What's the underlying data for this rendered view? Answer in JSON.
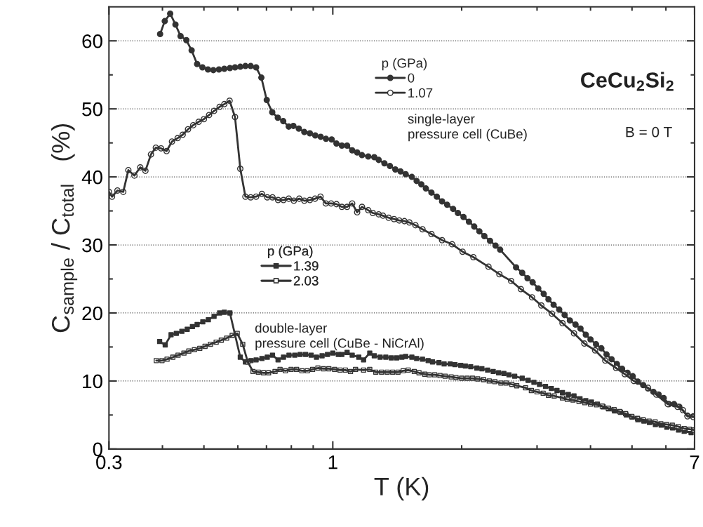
{
  "chart_data": {
    "type": "line",
    "xlabel": "T (K)",
    "ylabel": "C$_{sample}$ / C$_{total}$   (%)",
    "legend_title": "p (GPa)",
    "log": "x",
    "xlim": [
      0.3,
      7
    ],
    "xticks": [
      0.3,
      1,
      7
    ],
    "ylim": [
      0,
      65
    ],
    "yticks": [
      0,
      10,
      20,
      30,
      40,
      50,
      60
    ],
    "grid": "y",
    "legend": "top",
    "line_style": "solid",
    "annotations": [
      "CeCu$_{2}$Si$_{2}$",
      "B = 0 T",
      "single-layer\npressure cell (CuBe)",
      "double-layer\npressure cell (CuBe - NiCrAl)"
    ],
    "series": [
      {
        "name": "0",
        "color": "#333333",
        "marker": "circle",
        "x": [
          0.395,
          0.405,
          0.417,
          0.429,
          0.441,
          0.455,
          0.468,
          0.482,
          0.496,
          0.511,
          0.526,
          0.542,
          0.558,
          0.575,
          0.591,
          0.608,
          0.625,
          0.643,
          0.662,
          0.681,
          0.701,
          0.722,
          0.744,
          0.766,
          0.789,
          0.809,
          0.833,
          0.858,
          0.884,
          0.91,
          0.937,
          0.964,
          0.994,
          1.02,
          1.05,
          1.08,
          1.11,
          1.14,
          1.17,
          1.21,
          1.25,
          1.28,
          1.32,
          1.36,
          1.4,
          1.44,
          1.48,
          1.53,
          1.57,
          1.61,
          1.65,
          1.7,
          1.75,
          1.8,
          1.85,
          1.91,
          1.96,
          2.02,
          2.08,
          2.14,
          2.2,
          2.26,
          2.33,
          2.4,
          2.46,
          2.68,
          2.77,
          2.85,
          2.93,
          3.02,
          3.11,
          3.19,
          3.28,
          3.38,
          3.48,
          3.58,
          3.69,
          3.79,
          3.9,
          4.0,
          4.12,
          4.24,
          4.36,
          4.48,
          4.61,
          4.74,
          4.88,
          5.02,
          5.16,
          5.31,
          5.45,
          5.61,
          5.77,
          5.93,
          6.1,
          6.27,
          6.45,
          6.74,
          6.95
        ],
        "values": [
          61.0,
          62.9,
          64.0,
          62.4,
          60.7,
          60.1,
          58.6,
          56.6,
          56.1,
          55.8,
          55.7,
          55.8,
          55.9,
          56.0,
          56.1,
          56.2,
          56.3,
          56.3,
          56.1,
          54.6,
          51.3,
          49.5,
          48.7,
          48.2,
          47.4,
          47.5,
          47.1,
          46.6,
          46.4,
          46.1,
          45.9,
          45.6,
          45.5,
          44.9,
          44.6,
          44.6,
          43.9,
          43.6,
          43.2,
          43.0,
          42.9,
          42.5,
          42.0,
          41.6,
          41.1,
          40.8,
          40.4,
          40.0,
          39.4,
          38.9,
          38.3,
          37.7,
          37.1,
          36.4,
          35.9,
          35.3,
          34.7,
          34.1,
          33.4,
          32.7,
          32.0,
          31.3,
          30.6,
          29.9,
          29.3,
          26.7,
          25.9,
          25.1,
          24.5,
          23.6,
          22.8,
          22.0,
          21.2,
          20.5,
          19.7,
          18.9,
          18.3,
          17.7,
          16.8,
          16.1,
          15.4,
          14.8,
          13.9,
          13.2,
          12.5,
          11.8,
          11.2,
          10.7,
          9.9,
          9.4,
          8.9,
          8.4,
          8.0,
          7.5,
          6.6,
          6.6,
          6.2,
          4.9,
          4.8
        ]
      },
      {
        "name": "1.07",
        "color": "#333333",
        "marker": "circle",
        "colors": [
          "#ffffff",
          "#ffffff",
          "#ffffff",
          "#ffffff",
          "#ffffff",
          "#ffffff",
          "#ffffff",
          "#ffffff",
          "#ffffff",
          "#ffffff",
          "#ffffff",
          "#ffffff",
          "#ffffff",
          "#ffffff",
          "#ffffff",
          "#ffffff",
          "#ffffff",
          "#ffffff",
          "#ffffff",
          "#ffffff",
          "#ffffff",
          "#ffffff",
          "#ffffff",
          "#ffffff",
          "#ffffff",
          "#ffffff",
          "#ffffff",
          "#ffffff",
          "#ffffff",
          "#ffffff",
          "#ffffff",
          "#ffffff",
          "#ffffff",
          "#ffffff",
          "#ffffff",
          "#ffffff",
          "#ffffff",
          "#ffffff",
          "#ffffff",
          "#ffffff",
          "#ffffff",
          "#ffffff",
          "#ffffff",
          "#ffffff",
          "#ffffff",
          "#ffffff",
          "#ffffff",
          "#ffffff",
          "#ffffff",
          "#ffffff",
          "#ffffff",
          "#ffffff",
          "#ffffff",
          "#ffffff",
          "#ffffff",
          "#ffffff",
          "#ffffff",
          "#ffffff",
          "#ffffff",
          "#ffffff",
          "#ffffff",
          "#ffffff",
          "#ffffff",
          "#ffffff",
          "#ffffff",
          "#ffffff",
          "#ffffff",
          "#ffffff",
          "#ffffff",
          "#ffffff",
          "#ffffff",
          "#ffffff",
          "#ffffff",
          "#ffffff",
          "#ffffff",
          "#ffffff",
          "#ffffff",
          "#ffffff",
          "#ffffff",
          "#ffffff",
          "#ffffff",
          "#ffffff",
          "#ffffff",
          "#ffffff",
          "#ffffff",
          "#ffffff",
          "#ffffff"
        ],
        "x": [
          0.3,
          0.305,
          0.314,
          0.324,
          0.333,
          0.344,
          0.355,
          0.365,
          0.376,
          0.386,
          0.397,
          0.409,
          0.421,
          0.434,
          0.446,
          0.459,
          0.472,
          0.486,
          0.5,
          0.514,
          0.528,
          0.544,
          0.558,
          0.574,
          0.591,
          0.608,
          0.625,
          0.643,
          0.662,
          0.683,
          0.703,
          0.723,
          0.745,
          0.767,
          0.789,
          0.811,
          0.835,
          0.858,
          0.884,
          0.909,
          0.936,
          0.963,
          0.991,
          1.02,
          1.05,
          1.08,
          1.11,
          1.14,
          1.17,
          1.21,
          1.24,
          1.28,
          1.31,
          1.35,
          1.39,
          1.43,
          1.47,
          1.51,
          1.56,
          1.62,
          1.7,
          1.8,
          1.9,
          2.01,
          2.13,
          2.31,
          2.45,
          2.61,
          2.75,
          2.92,
          3.07,
          3.25,
          3.44,
          3.66,
          3.87,
          4.1,
          4.33,
          4.59,
          4.81,
          5.05,
          5.45,
          5.7,
          6.06,
          6.39,
          6.58,
          6.74,
          6.95
        ],
        "values": [
          37.8,
          37.1,
          38.0,
          37.8,
          41.0,
          40.2,
          41.4,
          40.9,
          43.3,
          44.3,
          44.2,
          43.8,
          45.2,
          45.7,
          46.2,
          47.0,
          47.6,
          48.1,
          48.5,
          49.1,
          49.7,
          50.3,
          50.7,
          51.2,
          48.8,
          41.2,
          37.1,
          37.0,
          37.1,
          37.5,
          37.0,
          37.0,
          36.6,
          36.6,
          36.8,
          36.5,
          36.8,
          36.5,
          36.6,
          36.8,
          37.1,
          36.1,
          36.1,
          36.0,
          35.6,
          35.6,
          36.1,
          34.8,
          35.6,
          35.1,
          34.7,
          34.5,
          34.3,
          34.0,
          33.8,
          33.6,
          33.5,
          33.3,
          32.9,
          32.3,
          31.6,
          30.7,
          30.1,
          29.0,
          28.2,
          26.8,
          25.7,
          24.7,
          23.5,
          22.3,
          21.1,
          19.9,
          18.5,
          17.0,
          15.5,
          14.5,
          13.0,
          11.9,
          11.0,
          10.0,
          9.0,
          8.0,
          6.6,
          6.2,
          5.7,
          4.8,
          4.7
        ]
      },
      {
        "name": "1.39",
        "color": "#333333",
        "marker": "square",
        "x": [
          0.394,
          0.406,
          0.419,
          0.431,
          0.444,
          0.457,
          0.47,
          0.482,
          0.497,
          0.512,
          0.528,
          0.544,
          0.558,
          0.575,
          0.608,
          0.625,
          0.644,
          0.662,
          0.683,
          0.703,
          0.723,
          0.745,
          0.767,
          0.79,
          0.815,
          0.839,
          0.864,
          0.89,
          0.916,
          0.944,
          0.972,
          1.0,
          1.03,
          1.05,
          1.08,
          1.11,
          1.15,
          1.18,
          1.22,
          1.25,
          1.29,
          1.33,
          1.37,
          1.41,
          1.45,
          1.48,
          1.53,
          1.57,
          1.62,
          1.67,
          1.71,
          1.77,
          1.82,
          1.88,
          1.93,
          1.99,
          2.04,
          2.1,
          2.17,
          2.23,
          2.3,
          2.37,
          2.44,
          2.51,
          2.58,
          2.66,
          2.77,
          2.86,
          2.95,
          3.04,
          3.14,
          3.24,
          3.34,
          3.44,
          3.55,
          3.66,
          3.78,
          3.9,
          4.02,
          4.15,
          4.28,
          4.41,
          4.55,
          4.7,
          4.85,
          5.0,
          5.16,
          5.33,
          5.49,
          5.67,
          5.85,
          6.03,
          6.22,
          6.42,
          6.62,
          6.87
        ],
        "values": [
          15.8,
          15.3,
          16.8,
          17.0,
          17.3,
          17.6,
          18.0,
          18.3,
          18.7,
          19.0,
          19.5,
          20.0,
          20.1,
          20.0,
          13.5,
          12.8,
          13.0,
          13.1,
          13.3,
          13.5,
          13.8,
          13.1,
          13.5,
          13.8,
          13.8,
          13.9,
          13.9,
          13.8,
          13.5,
          13.7,
          13.9,
          14.1,
          13.9,
          13.9,
          14.2,
          13.8,
          13.5,
          13.1,
          14.1,
          13.7,
          13.5,
          13.5,
          13.4,
          13.4,
          13.5,
          13.6,
          13.5,
          13.3,
          13.2,
          13.0,
          12.8,
          12.7,
          12.5,
          12.5,
          12.4,
          12.3,
          12.2,
          12.1,
          11.9,
          11.8,
          11.6,
          11.4,
          11.2,
          11.1,
          10.9,
          10.7,
          10.4,
          10.1,
          9.8,
          9.5,
          9.2,
          8.9,
          8.6,
          8.3,
          8.0,
          7.8,
          7.4,
          7.1,
          6.9,
          6.6,
          6.2,
          5.9,
          5.6,
          5.4,
          5.0,
          4.7,
          4.3,
          4.1,
          3.9,
          3.6,
          3.5,
          3.2,
          3.1,
          2.8,
          2.6,
          2.4
        ]
      },
      {
        "name": "2.03",
        "color": "#333333",
        "marker": "square",
        "colors": [
          "#ffffff",
          "#ffffff",
          "#ffffff",
          "#ffffff",
          "#ffffff",
          "#ffffff",
          "#ffffff",
          "#ffffff",
          "#ffffff",
          "#ffffff",
          "#ffffff",
          "#ffffff",
          "#ffffff",
          "#ffffff",
          "#ffffff",
          "#ffffff",
          "#ffffff",
          "#ffffff",
          "#ffffff",
          "#ffffff",
          "#ffffff",
          "#ffffff",
          "#ffffff",
          "#ffffff",
          "#ffffff",
          "#ffffff",
          "#ffffff",
          "#ffffff",
          "#ffffff",
          "#ffffff",
          "#ffffff",
          "#ffffff",
          "#ffffff",
          "#ffffff",
          "#ffffff",
          "#ffffff",
          "#ffffff",
          "#ffffff",
          "#ffffff",
          "#ffffff",
          "#ffffff",
          "#ffffff",
          "#ffffff",
          "#ffffff",
          "#ffffff",
          "#ffffff",
          "#ffffff",
          "#ffffff",
          "#ffffff",
          "#ffffff",
          "#ffffff",
          "#ffffff",
          "#ffffff",
          "#ffffff",
          "#ffffff",
          "#ffffff",
          "#ffffff",
          "#ffffff",
          "#ffffff",
          "#ffffff",
          "#ffffff",
          "#ffffff",
          "#ffffff",
          "#ffffff",
          "#ffffff",
          "#ffffff",
          "#ffffff",
          "#ffffff",
          "#ffffff",
          "#ffffff",
          "#ffffff",
          "#ffffff",
          "#ffffff",
          "#ffffff",
          "#ffffff",
          "#ffffff",
          "#ffffff",
          "#ffffff",
          "#ffffff",
          "#ffffff",
          "#ffffff",
          "#ffffff",
          "#ffffff",
          "#ffffff",
          "#ffffff",
          "#ffffff",
          "#ffffff",
          "#ffffff",
          "#ffffff",
          "#ffffff",
          "#ffffff",
          "#ffffff",
          "#ffffff",
          "#ffffff",
          "#ffffff",
          "#ffffff",
          "#ffffff"
        ],
        "x": [
          0.387,
          0.399,
          0.41,
          0.423,
          0.435,
          0.449,
          0.461,
          0.475,
          0.489,
          0.503,
          0.518,
          0.534,
          0.549,
          0.565,
          0.582,
          0.598,
          0.616,
          0.633,
          0.651,
          0.67,
          0.689,
          0.708,
          0.733,
          0.753,
          0.775,
          0.799,
          0.823,
          0.847,
          0.872,
          0.897,
          0.923,
          0.951,
          0.979,
          1.01,
          1.04,
          1.07,
          1.1,
          1.13,
          1.18,
          1.22,
          1.26,
          1.3,
          1.34,
          1.38,
          1.42,
          1.46,
          1.5,
          1.55,
          1.59,
          1.64,
          1.68,
          1.73,
          1.78,
          1.83,
          1.89,
          1.94,
          2.0,
          2.06,
          2.12,
          2.18,
          2.25,
          2.32,
          2.39,
          2.47,
          2.54,
          2.62,
          2.69,
          2.82,
          2.91,
          3.0,
          3.1,
          3.19,
          3.29,
          3.44,
          3.53,
          3.64,
          3.76,
          3.88,
          4.0,
          4.13,
          4.26,
          4.4,
          4.54,
          4.68,
          4.83,
          4.99,
          5.15,
          5.31,
          5.48,
          5.66,
          5.84,
          6.02,
          6.21,
          6.41,
          6.62,
          6.81,
          6.98
        ],
        "values": [
          13.0,
          13.0,
          13.2,
          13.5,
          13.8,
          14.1,
          14.4,
          14.6,
          14.8,
          15.1,
          15.4,
          15.7,
          16.0,
          16.3,
          16.7,
          17.0,
          15.4,
          12.8,
          11.4,
          11.3,
          11.2,
          11.2,
          11.4,
          11.7,
          11.5,
          11.7,
          11.7,
          11.5,
          11.5,
          11.7,
          11.9,
          11.8,
          11.8,
          11.7,
          11.6,
          11.6,
          11.4,
          11.7,
          11.6,
          11.7,
          11.3,
          11.3,
          11.3,
          11.3,
          11.3,
          11.5,
          11.6,
          11.4,
          11.2,
          11.0,
          10.9,
          10.9,
          10.8,
          10.7,
          10.6,
          10.5,
          10.4,
          10.4,
          10.4,
          10.3,
          10.2,
          10.0,
          9.9,
          9.7,
          9.7,
          9.5,
          9.3,
          9.0,
          8.6,
          8.4,
          8.2,
          7.9,
          7.8,
          7.5,
          7.3,
          7.2,
          7.0,
          6.8,
          6.6,
          6.5,
          6.3,
          6.0,
          5.8,
          5.5,
          5.2,
          4.8,
          4.5,
          4.3,
          4.1,
          4.0,
          3.7,
          3.6,
          3.5,
          3.3,
          3.0,
          2.9,
          2.8
        ]
      }
    ]
  }
}
